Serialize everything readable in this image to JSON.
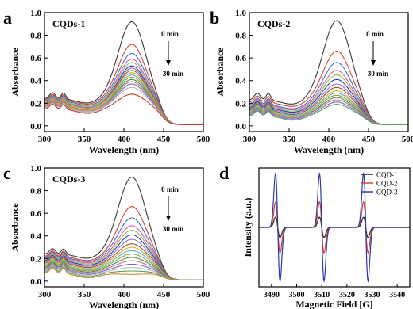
{
  "panel_labels": [
    "a",
    "b",
    "c",
    "d"
  ],
  "chart_data": [
    {
      "type": "line",
      "panel": "a",
      "title": "CQDs-1",
      "xlabel": "Wavelength (nm)",
      "ylabel": "Absorbance",
      "xlim": [
        300,
        500
      ],
      "ylim": [
        -0.05,
        1.0
      ],
      "xticks": [
        300,
        350,
        400,
        450,
        500
      ],
      "yticks": [
        0.0,
        0.2,
        0.4,
        0.6,
        0.8,
        1.0
      ],
      "annotation": {
        "start": "0 min",
        "end": "30 min"
      },
      "x": [
        300,
        310,
        320,
        330,
        340,
        350,
        360,
        370,
        380,
        390,
        400,
        410,
        420,
        430,
        440,
        450,
        460,
        470,
        480,
        490,
        500
      ],
      "curves": [
        {
          "peak": 0.91,
          "base": 0.23,
          "shoulder": 0.32,
          "color": "#3a3a3a"
        },
        {
          "peak": 0.71,
          "base": 0.22,
          "shoulder": 0.3,
          "color": "#d2442f"
        },
        {
          "peak": 0.63,
          "base": 0.21,
          "shoulder": 0.29,
          "color": "#3f72c4"
        },
        {
          "peak": 0.58,
          "base": 0.2,
          "shoulder": 0.28,
          "color": "#e64fb2"
        },
        {
          "peak": 0.55,
          "base": 0.2,
          "shoulder": 0.28,
          "color": "#7cc63f"
        },
        {
          "peak": 0.52,
          "base": 0.19,
          "shoulder": 0.27,
          "color": "#2f3aa8"
        },
        {
          "peak": 0.5,
          "base": 0.19,
          "shoulder": 0.27,
          "color": "#a06ad2"
        },
        {
          "peak": 0.48,
          "base": 0.18,
          "shoulder": 0.26,
          "color": "#8a5a28"
        },
        {
          "peak": 0.46,
          "base": 0.18,
          "shoulder": 0.26,
          "color": "#e6a52c"
        },
        {
          "peak": 0.44,
          "base": 0.17,
          "shoulder": 0.25,
          "color": "#49b8c8"
        },
        {
          "peak": 0.42,
          "base": 0.17,
          "shoulder": 0.25,
          "color": "#9a9a2a"
        },
        {
          "peak": 0.4,
          "base": 0.16,
          "shoulder": 0.24,
          "color": "#4a8a4a"
        },
        {
          "peak": 0.38,
          "base": 0.16,
          "shoulder": 0.24,
          "color": "#c87878"
        },
        {
          "peak": 0.36,
          "base": 0.15,
          "shoulder": 0.23,
          "color": "#6a6ad8"
        },
        {
          "peak": 0.33,
          "base": 0.15,
          "shoulder": 0.22,
          "color": "#b8b8b8"
        },
        {
          "peak": 0.27,
          "base": 0.14,
          "shoulder": 0.21,
          "color": "#c23a2a"
        }
      ]
    },
    {
      "type": "line",
      "panel": "b",
      "title": "CQDs-2",
      "xlabel": "Wavelength (nm)",
      "ylabel": "Absorbance",
      "xlim": [
        300,
        500
      ],
      "ylim": [
        -0.05,
        1.0
      ],
      "xticks": [
        300,
        350,
        400,
        450,
        500
      ],
      "yticks": [
        0.0,
        0.2,
        0.4,
        0.6,
        0.8,
        1.0
      ],
      "annotation": {
        "start": "0 min",
        "end": "30 min"
      },
      "x": [
        300,
        310,
        320,
        330,
        340,
        350,
        360,
        370,
        380,
        390,
        400,
        410,
        420,
        430,
        440,
        450,
        460,
        470,
        480,
        490,
        500
      ],
      "curves": [
        {
          "peak": 0.92,
          "base": 0.22,
          "shoulder": 0.32,
          "color": "#3a3a3a"
        },
        {
          "peak": 0.65,
          "base": 0.2,
          "shoulder": 0.29,
          "color": "#d2442f"
        },
        {
          "peak": 0.55,
          "base": 0.18,
          "shoulder": 0.27,
          "color": "#3f72c4"
        },
        {
          "peak": 0.48,
          "base": 0.17,
          "shoulder": 0.26,
          "color": "#e64fb2"
        },
        {
          "peak": 0.44,
          "base": 0.16,
          "shoulder": 0.25,
          "color": "#7cc63f"
        },
        {
          "peak": 0.4,
          "base": 0.15,
          "shoulder": 0.24,
          "color": "#2f3aa8"
        },
        {
          "peak": 0.36,
          "base": 0.14,
          "shoulder": 0.23,
          "color": "#a06ad2"
        },
        {
          "peak": 0.33,
          "base": 0.13,
          "shoulder": 0.22,
          "color": "#8a5a28"
        },
        {
          "peak": 0.3,
          "base": 0.12,
          "shoulder": 0.21,
          "color": "#e6a52c"
        },
        {
          "peak": 0.28,
          "base": 0.12,
          "shoulder": 0.2,
          "color": "#49b8c8"
        },
        {
          "peak": 0.26,
          "base": 0.11,
          "shoulder": 0.19,
          "color": "#9a9a2a"
        },
        {
          "peak": 0.24,
          "base": 0.1,
          "shoulder": 0.18,
          "color": "#4a8a4a"
        },
        {
          "peak": 0.22,
          "base": 0.1,
          "shoulder": 0.17,
          "color": "#c87878"
        },
        {
          "peak": 0.2,
          "base": 0.09,
          "shoulder": 0.16,
          "color": "#6a6ad8"
        },
        {
          "peak": 0.18,
          "base": 0.08,
          "shoulder": 0.15,
          "color": "#5aa05a"
        }
      ]
    },
    {
      "type": "line",
      "panel": "c",
      "title": "CQDs-3",
      "xlabel": "Wavelength (nm)",
      "ylabel": "Absorbance",
      "xlim": [
        300,
        500
      ],
      "ylim": [
        -0.05,
        1.0
      ],
      "xticks": [
        300,
        350,
        400,
        450,
        500
      ],
      "yticks": [
        0.0,
        0.2,
        0.4,
        0.6,
        0.8,
        1.0
      ],
      "annotation": {
        "start": "0 min",
        "end": "30 min"
      },
      "x": [
        300,
        310,
        320,
        330,
        340,
        350,
        360,
        370,
        380,
        390,
        400,
        410,
        420,
        430,
        440,
        450,
        460,
        470,
        480,
        490,
        500
      ],
      "curves": [
        {
          "peak": 0.91,
          "base": 0.23,
          "shoulder": 0.31,
          "color": "#3a3a3a"
        },
        {
          "peak": 0.65,
          "base": 0.21,
          "shoulder": 0.29,
          "color": "#d2442f"
        },
        {
          "peak": 0.55,
          "base": 0.2,
          "shoulder": 0.28,
          "color": "#3f72c4"
        },
        {
          "peak": 0.48,
          "base": 0.19,
          "shoulder": 0.27,
          "color": "#e64fb2"
        },
        {
          "peak": 0.44,
          "base": 0.18,
          "shoulder": 0.26,
          "color": "#7cc63f"
        },
        {
          "peak": 0.4,
          "base": 0.17,
          "shoulder": 0.25,
          "color": "#2f3aa8"
        },
        {
          "peak": 0.36,
          "base": 0.16,
          "shoulder": 0.24,
          "color": "#a06ad2"
        },
        {
          "peak": 0.32,
          "base": 0.15,
          "shoulder": 0.23,
          "color": "#8a5a28"
        },
        {
          "peak": 0.29,
          "base": 0.14,
          "shoulder": 0.22,
          "color": "#e6a52c"
        },
        {
          "peak": 0.26,
          "base": 0.13,
          "shoulder": 0.21,
          "color": "#49b8c8"
        },
        {
          "peak": 0.23,
          "base": 0.12,
          "shoulder": 0.2,
          "color": "#9a9a2a"
        },
        {
          "peak": 0.2,
          "base": 0.11,
          "shoulder": 0.19,
          "color": "#4a8a4a"
        },
        {
          "peak": 0.17,
          "base": 0.1,
          "shoulder": 0.18,
          "color": "#c87878"
        },
        {
          "peak": 0.14,
          "base": 0.09,
          "shoulder": 0.17,
          "color": "#6a6ad8"
        },
        {
          "peak": 0.11,
          "base": 0.08,
          "shoulder": 0.16,
          "color": "#b8b8b8"
        },
        {
          "peak": 0.08,
          "base": 0.07,
          "shoulder": 0.15,
          "color": "#5aa05a"
        },
        {
          "peak": 0.05,
          "base": 0.06,
          "shoulder": 0.14,
          "color": "#d28a3a"
        }
      ]
    },
    {
      "type": "line",
      "panel": "d",
      "title": "",
      "xlabel": "Magnetic Field [G]",
      "ylabel": "Intensity (a.u.)",
      "xlim": [
        3485,
        3545
      ],
      "xticks": [
        3490,
        3500,
        3510,
        3520,
        3530,
        3540
      ],
      "ylim": [
        -1.05,
        1.05
      ],
      "line_centers": [
        3492.5,
        3510.0,
        3527.5
      ],
      "legend_position": "top-right",
      "series": [
        {
          "name": "CQD-1",
          "amplitude": 0.18,
          "color": "#222222"
        },
        {
          "name": "CQD-2",
          "amplitude": 0.45,
          "color": "#d2442f"
        },
        {
          "name": "CQD-3",
          "amplitude": 0.95,
          "color": "#2f3aa8"
        }
      ]
    }
  ]
}
